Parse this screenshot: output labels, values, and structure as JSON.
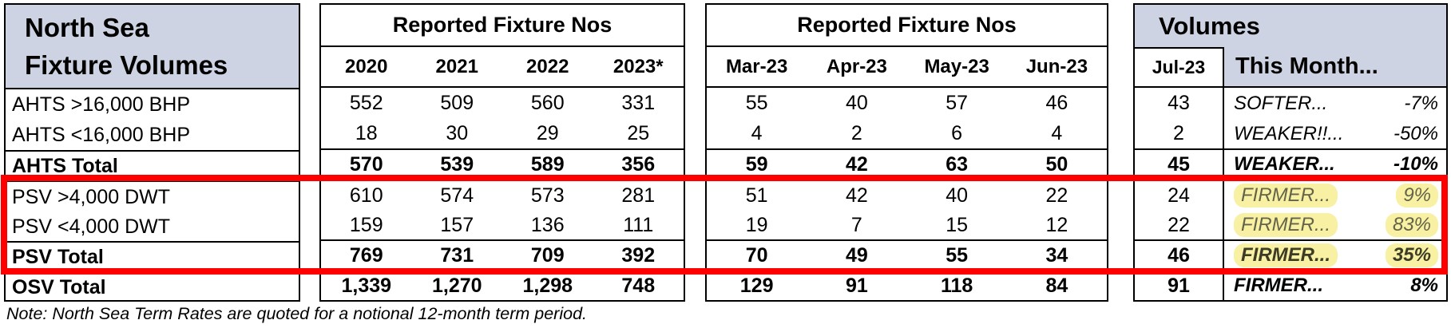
{
  "header": {
    "title_line1": "North Sea",
    "title_line2": "Fixture Volumes",
    "years_block_title": "Reported Fixture Nos",
    "months_block_title": "Reported Fixture Nos",
    "volumes_block_title": "Volumes",
    "this_month_label": "This Month...",
    "year_columns": [
      "2020",
      "2021",
      "2022",
      "2023*"
    ],
    "month_columns": [
      "Mar-23",
      "Apr-23",
      "May-23",
      "Jun-23"
    ],
    "jul_column": "Jul-23"
  },
  "rows": [
    {
      "label": "AHTS >16,000 BHP",
      "years": [
        "552",
        "509",
        "560",
        "331"
      ],
      "months": [
        "55",
        "40",
        "57",
        "46"
      ],
      "jul": "43",
      "comment": "SOFTER...",
      "pct": "-7%"
    },
    {
      "label": "AHTS <16,000 BHP",
      "years": [
        "18",
        "30",
        "29",
        "25"
      ],
      "months": [
        "4",
        "2",
        "6",
        "4"
      ],
      "jul": "2",
      "comment": "WEAKER!!...",
      "pct": "-50%"
    },
    {
      "label": "AHTS Total",
      "years": [
        "570",
        "539",
        "589",
        "356"
      ],
      "months": [
        "59",
        "42",
        "63",
        "50"
      ],
      "jul": "45",
      "comment": "WEAKER...",
      "pct": "-10%"
    },
    {
      "label": "PSV >4,000 DWT",
      "years": [
        "610",
        "574",
        "573",
        "281"
      ],
      "months": [
        "51",
        "42",
        "40",
        "22"
      ],
      "jul": "24",
      "comment": "FIRMER...",
      "pct": "9%"
    },
    {
      "label": "PSV <4,000 DWT",
      "years": [
        "159",
        "157",
        "136",
        "111"
      ],
      "months": [
        "19",
        "7",
        "15",
        "12"
      ],
      "jul": "22",
      "comment": "FIRMER...",
      "pct": "83%"
    },
    {
      "label": "PSV Total",
      "years": [
        "769",
        "731",
        "709",
        "392"
      ],
      "months": [
        "70",
        "49",
        "55",
        "34"
      ],
      "jul": "46",
      "comment": "FIRMER...",
      "pct": "35%"
    },
    {
      "label": "OSV Total",
      "years": [
        "1,339",
        "1,270",
        "1,298",
        "748"
      ],
      "months": [
        "129",
        "91",
        "118",
        "84"
      ],
      "jul": "91",
      "comment": "FIRMER...",
      "pct": "8%"
    }
  ],
  "note": "Note: North Sea Term Rates are quoted for a notional 12-month term period.",
  "colors": {
    "header_fill": "#CDD3E3",
    "highlight_yellow": "#F8F0A2",
    "annotation_red": "#FF0000"
  }
}
